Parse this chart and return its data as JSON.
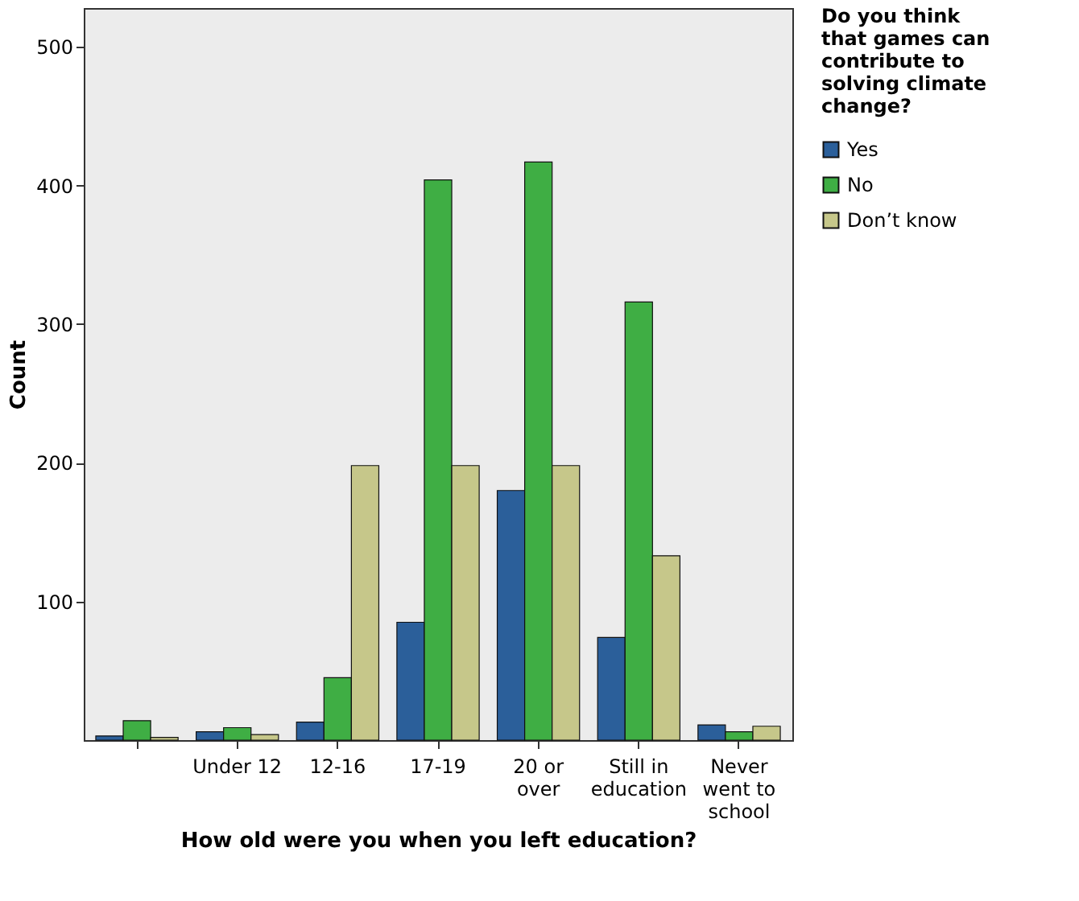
{
  "chart_data": {
    "type": "bar",
    "xlabel": "How old were you when you left education?",
    "ylabel": "Count",
    "legend_title": "Do you think that games can contribute to solving climate change?",
    "categories": [
      null,
      "Under 12",
      "12-16",
      "17-19",
      "20 or over",
      "Still in education",
      "Never went to school"
    ],
    "series": [
      {
        "name": "Yes",
        "color": "#2b5f9a",
        "values": [
          3,
          6,
          13,
          85,
          180,
          74,
          11
        ]
      },
      {
        "name": "No",
        "color": "#3fae44",
        "values": [
          14,
          9,
          45,
          404,
          417,
          316,
          6
        ]
      },
      {
        "name": "Don’t know",
        "color": "#c6c78a",
        "values": [
          2,
          4,
          198,
          198,
          198,
          133,
          10
        ]
      }
    ],
    "ylim": [
      0,
      528
    ],
    "yticks": [
      100,
      200,
      300,
      400,
      500
    ],
    "grid": false,
    "legend": "right"
  }
}
